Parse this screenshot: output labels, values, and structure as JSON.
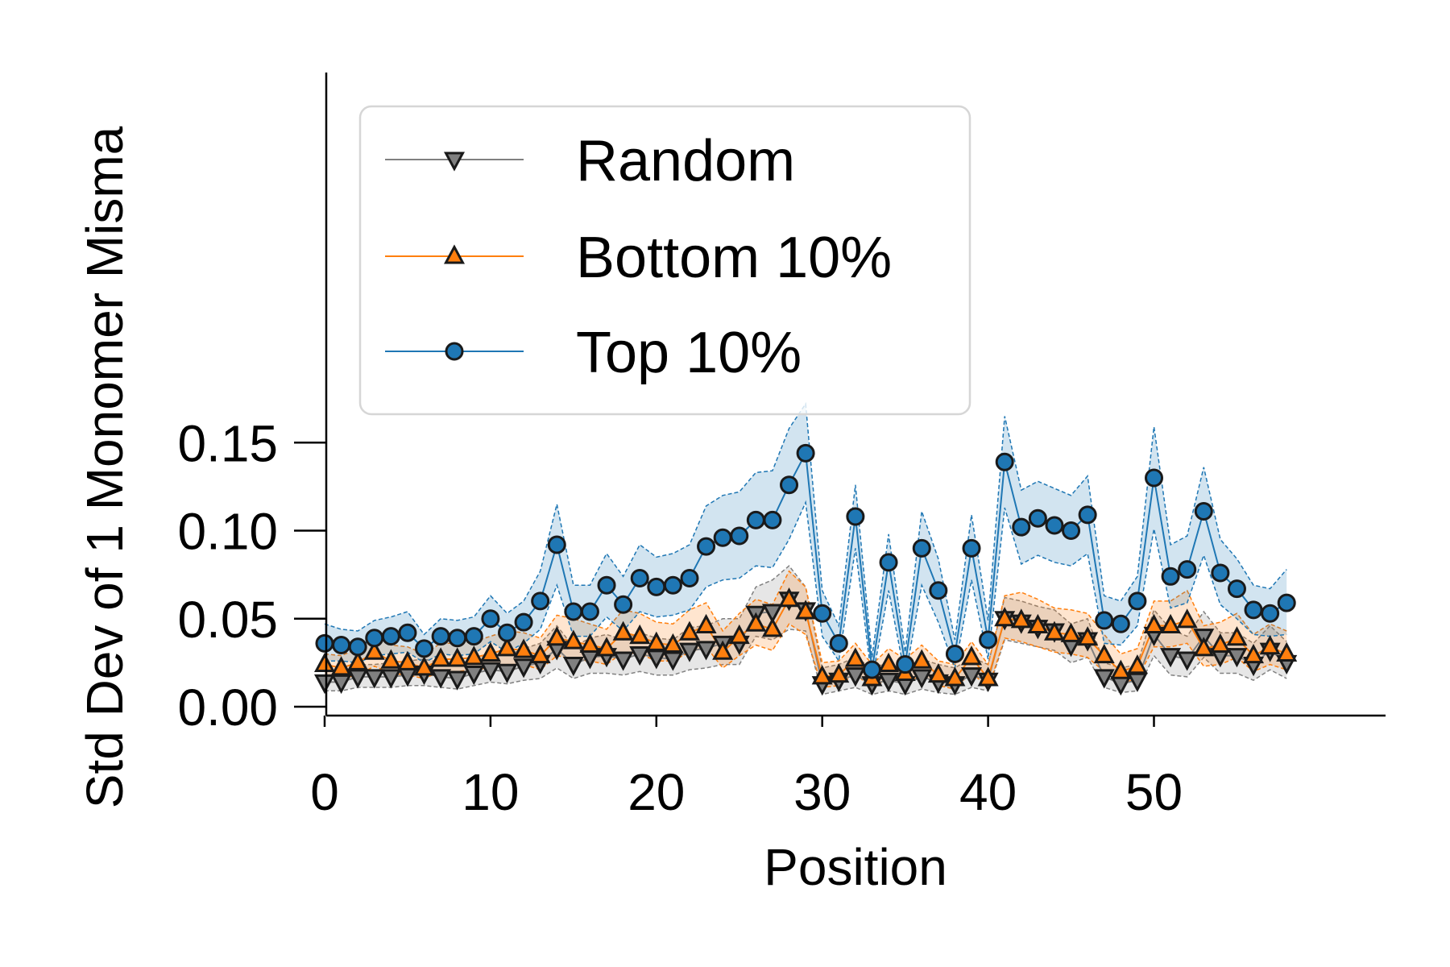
{
  "chart_data": {
    "type": "line",
    "title": "",
    "xlabel": "Position",
    "ylabel": "Std Dev of 1 Monomer Misma",
    "xlim": [
      -3,
      61
    ],
    "ylim": [
      0,
      0.18
    ],
    "xticks": [
      0,
      10,
      20,
      30,
      40,
      50
    ],
    "yticks": [
      0.0,
      0.05,
      0.1,
      0.15
    ],
    "xtick_labels": [
      "0",
      "10",
      "20",
      "30",
      "40",
      "50"
    ],
    "ytick_labels": [
      "0.00",
      "0.05",
      "0.10",
      "0.15"
    ],
    "grid": false,
    "legend_position": "top-left",
    "x": [
      0,
      1,
      2,
      3,
      4,
      5,
      6,
      7,
      8,
      9,
      10,
      11,
      12,
      13,
      14,
      15,
      16,
      17,
      18,
      19,
      20,
      21,
      22,
      23,
      24,
      25,
      26,
      27,
      28,
      29,
      30,
      31,
      32,
      33,
      34,
      35,
      36,
      37,
      38,
      39,
      40,
      41,
      42,
      43,
      44,
      45,
      46,
      47,
      48,
      49,
      50,
      51,
      52,
      53,
      54,
      55,
      56,
      57,
      58
    ],
    "series": [
      {
        "name": "Random",
        "color": "#808080",
        "marker": "triangle-down",
        "values": [
          0.014,
          0.014,
          0.017,
          0.017,
          0.017,
          0.018,
          0.019,
          0.017,
          0.016,
          0.019,
          0.021,
          0.02,
          0.023,
          0.025,
          0.033,
          0.024,
          0.028,
          0.029,
          0.027,
          0.03,
          0.028,
          0.027,
          0.032,
          0.033,
          0.036,
          0.036,
          0.053,
          0.054,
          0.061,
          0.055,
          0.013,
          0.015,
          0.018,
          0.013,
          0.015,
          0.013,
          0.017,
          0.014,
          0.013,
          0.018,
          0.015,
          0.05,
          0.048,
          0.045,
          0.043,
          0.035,
          0.038,
          0.017,
          0.013,
          0.015,
          0.041,
          0.029,
          0.027,
          0.04,
          0.029,
          0.029,
          0.024,
          0.032,
          0.025
        ],
        "band_upper": [
          0.021,
          0.02,
          0.024,
          0.024,
          0.025,
          0.026,
          0.027,
          0.025,
          0.024,
          0.027,
          0.03,
          0.029,
          0.033,
          0.036,
          0.046,
          0.034,
          0.039,
          0.041,
          0.038,
          0.042,
          0.039,
          0.038,
          0.045,
          0.046,
          0.05,
          0.05,
          0.068,
          0.072,
          0.08,
          0.068,
          0.022,
          0.024,
          0.028,
          0.022,
          0.025,
          0.022,
          0.027,
          0.024,
          0.022,
          0.028,
          0.024,
          0.062,
          0.06,
          0.057,
          0.055,
          0.047,
          0.05,
          0.025,
          0.022,
          0.024,
          0.055,
          0.044,
          0.04,
          0.054,
          0.042,
          0.042,
          0.036,
          0.046,
          0.037
        ],
        "band_lower": [
          0.009,
          0.009,
          0.011,
          0.011,
          0.011,
          0.012,
          0.012,
          0.011,
          0.01,
          0.012,
          0.014,
          0.013,
          0.015,
          0.016,
          0.022,
          0.016,
          0.019,
          0.019,
          0.018,
          0.02,
          0.018,
          0.018,
          0.021,
          0.022,
          0.024,
          0.024,
          0.04,
          0.038,
          0.044,
          0.043,
          0.007,
          0.009,
          0.011,
          0.007,
          0.009,
          0.007,
          0.01,
          0.008,
          0.007,
          0.011,
          0.009,
          0.038,
          0.036,
          0.034,
          0.032,
          0.025,
          0.028,
          0.011,
          0.008,
          0.009,
          0.029,
          0.018,
          0.017,
          0.028,
          0.019,
          0.019,
          0.015,
          0.021,
          0.016
        ]
      },
      {
        "name": "Bottom 10%",
        "color": "#ff7f0e",
        "marker": "triangle-up",
        "values": [
          0.024,
          0.022,
          0.025,
          0.031,
          0.026,
          0.025,
          0.022,
          0.027,
          0.027,
          0.028,
          0.03,
          0.033,
          0.032,
          0.029,
          0.039,
          0.037,
          0.035,
          0.033,
          0.042,
          0.04,
          0.036,
          0.035,
          0.042,
          0.046,
          0.031,
          0.04,
          0.047,
          0.044,
          0.061,
          0.054,
          0.017,
          0.018,
          0.027,
          0.016,
          0.024,
          0.019,
          0.026,
          0.018,
          0.016,
          0.028,
          0.016,
          0.05,
          0.049,
          0.046,
          0.042,
          0.041,
          0.039,
          0.029,
          0.02,
          0.023,
          0.046,
          0.046,
          0.049,
          0.033,
          0.035,
          0.039,
          0.029,
          0.034,
          0.03
        ],
        "band_upper": [
          0.03,
          0.029,
          0.033,
          0.04,
          0.035,
          0.034,
          0.03,
          0.036,
          0.036,
          0.037,
          0.04,
          0.043,
          0.042,
          0.039,
          0.052,
          0.05,
          0.047,
          0.044,
          0.055,
          0.053,
          0.048,
          0.047,
          0.055,
          0.059,
          0.043,
          0.053,
          0.061,
          0.058,
          0.077,
          0.068,
          0.025,
          0.026,
          0.036,
          0.024,
          0.033,
          0.027,
          0.035,
          0.026,
          0.024,
          0.037,
          0.024,
          0.063,
          0.065,
          0.061,
          0.056,
          0.055,
          0.053,
          0.041,
          0.03,
          0.033,
          0.06,
          0.06,
          0.066,
          0.046,
          0.048,
          0.053,
          0.041,
          0.047,
          0.043
        ],
        "band_lower": [
          0.018,
          0.016,
          0.018,
          0.023,
          0.019,
          0.018,
          0.016,
          0.02,
          0.02,
          0.021,
          0.022,
          0.024,
          0.024,
          0.021,
          0.029,
          0.027,
          0.026,
          0.024,
          0.031,
          0.03,
          0.026,
          0.026,
          0.031,
          0.034,
          0.022,
          0.029,
          0.035,
          0.032,
          0.047,
          0.041,
          0.011,
          0.012,
          0.019,
          0.01,
          0.017,
          0.013,
          0.018,
          0.012,
          0.01,
          0.02,
          0.01,
          0.039,
          0.037,
          0.034,
          0.031,
          0.03,
          0.028,
          0.02,
          0.013,
          0.016,
          0.034,
          0.034,
          0.036,
          0.023,
          0.024,
          0.028,
          0.02,
          0.024,
          0.021
        ]
      },
      {
        "name": "Top 10%",
        "color": "#1f77b4",
        "marker": "circle",
        "values": [
          0.036,
          0.035,
          0.034,
          0.039,
          0.04,
          0.042,
          0.033,
          0.04,
          0.039,
          0.04,
          0.05,
          0.042,
          0.048,
          0.06,
          0.092,
          0.054,
          0.054,
          0.069,
          0.058,
          0.073,
          0.068,
          0.069,
          0.073,
          0.091,
          0.096,
          0.097,
          0.106,
          0.106,
          0.126,
          0.144,
          0.053,
          0.036,
          0.108,
          0.021,
          0.082,
          0.024,
          0.09,
          0.066,
          0.03,
          0.09,
          0.038,
          0.139,
          0.102,
          0.107,
          0.103,
          0.1,
          0.109,
          0.049,
          0.047,
          0.06,
          0.13,
          0.074,
          0.078,
          0.111,
          0.076,
          0.067,
          0.055,
          0.053,
          0.059
        ],
        "band_upper": [
          0.047,
          0.044,
          0.043,
          0.049,
          0.051,
          0.054,
          0.041,
          0.05,
          0.049,
          0.051,
          0.063,
          0.053,
          0.06,
          0.077,
          0.115,
          0.069,
          0.069,
          0.087,
          0.074,
          0.092,
          0.085,
          0.087,
          0.092,
          0.114,
          0.12,
          0.122,
          0.133,
          0.134,
          0.158,
          0.172,
          0.066,
          0.046,
          0.126,
          0.028,
          0.098,
          0.031,
          0.111,
          0.084,
          0.038,
          0.109,
          0.049,
          0.165,
          0.123,
          0.128,
          0.124,
          0.12,
          0.131,
          0.063,
          0.06,
          0.074,
          0.159,
          0.092,
          0.097,
          0.136,
          0.095,
          0.084,
          0.069,
          0.067,
          0.078
        ],
        "band_lower": [
          0.026,
          0.026,
          0.025,
          0.029,
          0.03,
          0.031,
          0.025,
          0.03,
          0.029,
          0.03,
          0.037,
          0.031,
          0.036,
          0.044,
          0.069,
          0.04,
          0.04,
          0.051,
          0.043,
          0.054,
          0.051,
          0.052,
          0.055,
          0.068,
          0.072,
          0.073,
          0.08,
          0.079,
          0.095,
          0.116,
          0.04,
          0.026,
          0.09,
          0.015,
          0.066,
          0.017,
          0.069,
          0.048,
          0.022,
          0.072,
          0.027,
          0.113,
          0.081,
          0.086,
          0.082,
          0.08,
          0.087,
          0.036,
          0.035,
          0.046,
          0.101,
          0.056,
          0.059,
          0.086,
          0.058,
          0.05,
          0.041,
          0.04,
          0.041
        ]
      }
    ]
  }
}
